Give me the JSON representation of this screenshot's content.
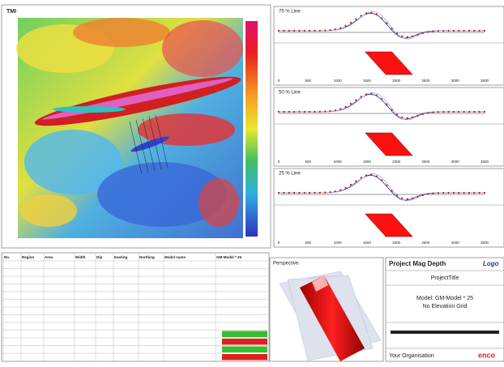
{
  "map": {
    "title": "TMI"
  },
  "profiles": [
    {
      "title": "75 % Line"
    },
    {
      "title": "50 % Line"
    },
    {
      "title": "25 % Line"
    }
  ],
  "profile_axis": [
    "0",
    "500",
    "1000",
    "1500",
    "2000",
    "2500",
    "3000",
    "3500"
  ],
  "table": {
    "headers": [
      "No.",
      "Region",
      "Area",
      "Width",
      "Dip",
      "Easting",
      "Northing",
      "Model name",
      "GM-Model * 25"
    ]
  },
  "perspective": {
    "title": "Perspective"
  },
  "title_block": {
    "header": "Project Mag Depth",
    "logo": "Logo",
    "project": "ProjectTitle",
    "model": "Model: GM-Model * 25",
    "elevation": "No Elevation Grid",
    "organisation": "Your Organisation",
    "brand": "enco"
  }
}
